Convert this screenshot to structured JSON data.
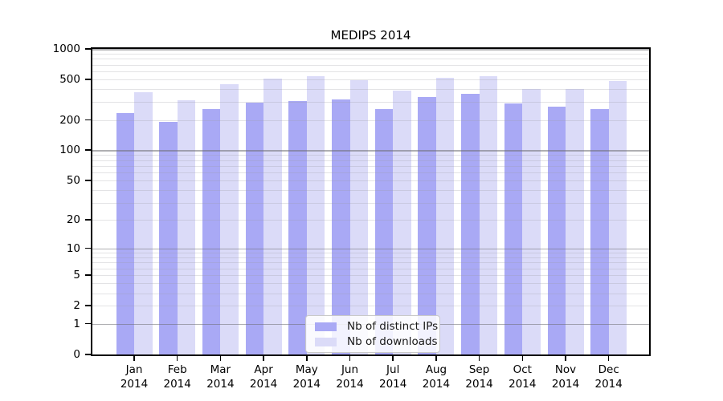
{
  "chart_data": {
    "type": "bar",
    "title": "MEDIPS 2014",
    "categories": [
      "Jan",
      "Feb",
      "Mar",
      "Apr",
      "May",
      "Jun",
      "Jul",
      "Aug",
      "Sep",
      "Oct",
      "Nov",
      "Dec"
    ],
    "year_label": "2014",
    "series": [
      {
        "name": "Nb of distinct IPs",
        "color": "#a9a9f5",
        "values": [
          235,
          191,
          258,
          296,
          309,
          318,
          254,
          334,
          362,
          291,
          270,
          254
        ]
      },
      {
        "name": "Nb of downloads",
        "color": "#dbdbf8",
        "values": [
          375,
          315,
          451,
          512,
          535,
          495,
          389,
          519,
          541,
          407,
          402,
          482
        ]
      }
    ],
    "y_scale": "log1p",
    "ylim": [
      0,
      1000
    ],
    "y_ticks": [
      0,
      1,
      2,
      5,
      10,
      20,
      50,
      100,
      200,
      500,
      1000
    ],
    "y_major_gridlines": [
      1,
      10,
      100,
      1000
    ],
    "y_minor_gridline_decades": [
      1,
      10,
      100
    ],
    "grid": true,
    "legend_position": "bottom-center",
    "xlabel": "",
    "ylabel": ""
  },
  "colors": {
    "background": "#ffffff",
    "axis": "#000000",
    "grid_major": "rgba(110,110,115,0.55)",
    "grid_minor": "rgba(155,155,160,0.28)",
    "legend_border": "#c9c9c9"
  }
}
